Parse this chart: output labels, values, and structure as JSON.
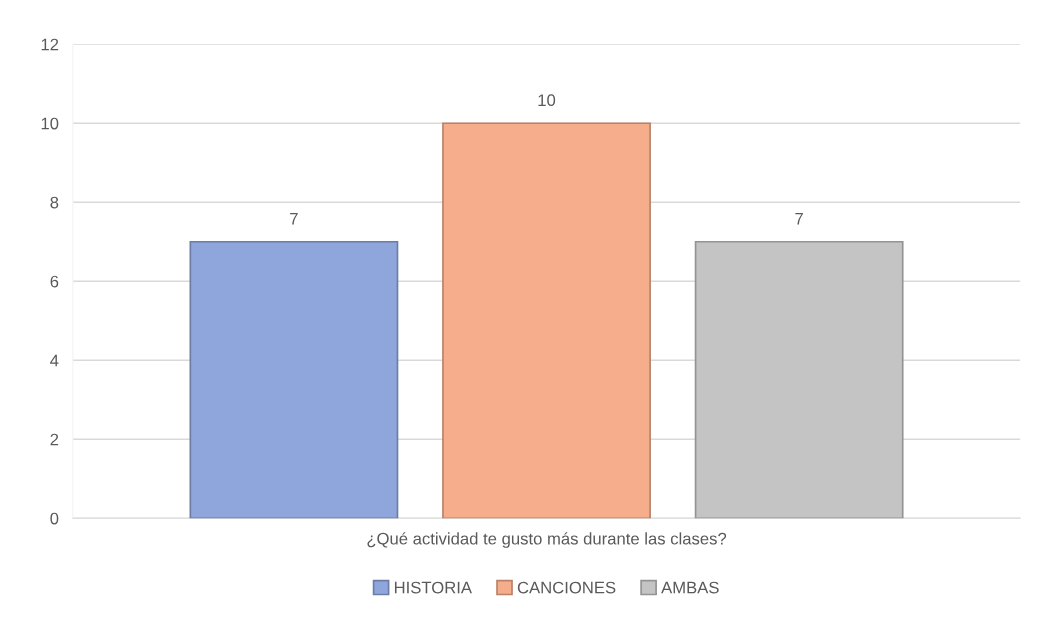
{
  "chart_data": {
    "type": "bar",
    "categories": [
      "¿Qué actividad te gusto más durante las clases?"
    ],
    "series": [
      {
        "name": "HISTORIA",
        "color": "#8fa6dc",
        "values": [
          7
        ]
      },
      {
        "name": "CANCIONES",
        "color": "#f5ad8c",
        "values": [
          10
        ]
      },
      {
        "name": "AMBAS",
        "color": "#c4c4c4",
        "values": [
          7
        ]
      }
    ],
    "ylim": [
      0,
      12
    ],
    "yticks": [
      0,
      2,
      4,
      6,
      8,
      10,
      12
    ],
    "grid": "y",
    "legend": "bottom",
    "data_labels": true
  }
}
